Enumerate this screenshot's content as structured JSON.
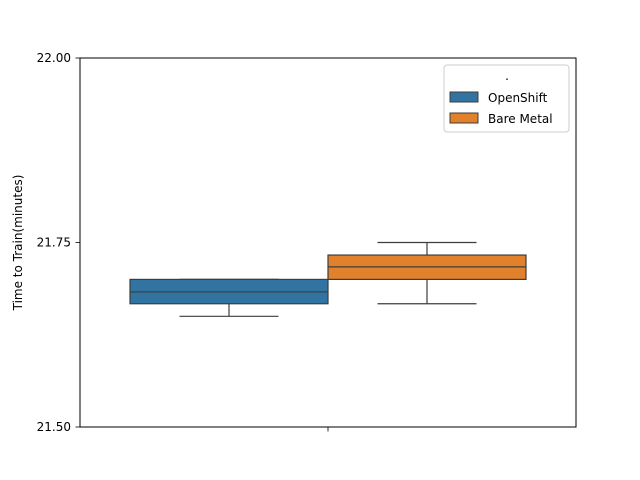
{
  "chart_data": {
    "type": "box",
    "ylabel": "Time to Train(minutes)",
    "xlabel": "",
    "ylim": [
      21.5,
      22.0
    ],
    "yticks": [
      "21.50",
      "21.75",
      "22.00"
    ],
    "grid": false,
    "legend": {
      "title": ".",
      "placement": "top-right",
      "entries": [
        "OpenShift",
        "Bare Metal"
      ]
    },
    "series": [
      {
        "name": "OpenShift",
        "color": "#3274a1",
        "whisker_low": 21.65,
        "q1": 21.667,
        "median": 21.683,
        "q3": 21.7,
        "whisker_high": 21.7
      },
      {
        "name": "Bare Metal",
        "color": "#e1812c",
        "whisker_low": 21.667,
        "q1": 21.7,
        "median": 21.717,
        "q3": 21.733,
        "whisker_high": 21.75
      }
    ]
  }
}
